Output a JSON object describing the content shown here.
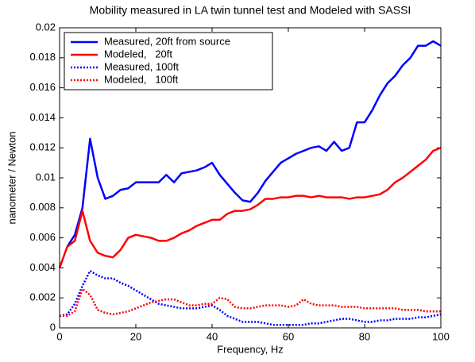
{
  "chart_data": {
    "type": "line",
    "title": "Mobility measured in LA twin tunnel test and Modeled with SASSI",
    "xlabel": "Frequency, Hz",
    "ylabel": "nanometer / Newton",
    "xlim": [
      0,
      100
    ],
    "xticks": [
      0,
      20,
      40,
      60,
      80,
      100
    ],
    "ylim": [
      0,
      0.02
    ],
    "yticks": [
      0,
      0.002,
      0.004,
      0.006,
      0.008,
      0.01,
      0.012,
      0.014,
      0.016,
      0.018,
      0.02
    ],
    "grid": false,
    "legend": "upper left",
    "x": [
      0,
      2,
      4,
      6,
      8,
      10,
      12,
      14,
      16,
      18,
      20,
      22,
      24,
      26,
      28,
      30,
      32,
      34,
      36,
      38,
      40,
      42,
      44,
      46,
      48,
      50,
      52,
      54,
      56,
      58,
      60,
      62,
      64,
      66,
      68,
      70,
      72,
      74,
      76,
      78,
      80,
      82,
      84,
      86,
      88,
      90,
      92,
      94,
      96,
      98,
      100
    ],
    "series": [
      {
        "name": "Measured, 20ft from source",
        "color": "#0000ff",
        "linestyle": "solid",
        "values": [
          null,
          0.0054,
          0.0062,
          0.008,
          0.0126,
          0.01,
          0.0086,
          0.0088,
          0.0092,
          0.0093,
          0.0097,
          0.0097,
          0.0097,
          0.0097,
          0.0102,
          0.0097,
          0.0103,
          0.0104,
          0.0105,
          0.0107,
          0.011,
          0.0102,
          0.0096,
          0.009,
          0.0085,
          0.0084,
          0.009,
          0.0098,
          0.0104,
          0.011,
          0.0113,
          0.0116,
          0.0118,
          0.012,
          0.0121,
          0.0118,
          0.0124,
          0.0118,
          0.012,
          0.0137,
          0.0137,
          0.0145,
          0.0155,
          0.0163,
          0.0168,
          0.0175,
          0.018,
          0.0188,
          0.0188,
          0.0191,
          0.0188
        ]
      },
      {
        "name": "Modeled,   20ft",
        "color": "#ff0000",
        "linestyle": "solid",
        "values": [
          0.004,
          0.0054,
          0.0058,
          0.0078,
          0.0058,
          0.005,
          0.0048,
          0.0047,
          0.0052,
          0.006,
          0.0062,
          0.0061,
          0.006,
          0.0058,
          0.0058,
          0.006,
          0.0063,
          0.0065,
          0.0068,
          0.007,
          0.0072,
          0.0072,
          0.0076,
          0.0078,
          0.0078,
          0.0079,
          0.0082,
          0.0086,
          0.0086,
          0.0087,
          0.0087,
          0.0088,
          0.0088,
          0.0087,
          0.0088,
          0.0087,
          0.0087,
          0.0087,
          0.0086,
          0.0087,
          0.0087,
          0.0088,
          0.0089,
          0.0092,
          0.0097,
          0.01,
          0.0104,
          0.0108,
          0.0112,
          0.0118,
          0.012
        ]
      },
      {
        "name": "Measured, 100ft",
        "color": "#0000ff",
        "linestyle": "dotted",
        "values": [
          0.0008,
          0.0009,
          0.0016,
          0.0028,
          0.0038,
          0.0035,
          0.0033,
          0.0033,
          0.003,
          0.0028,
          0.0025,
          0.0022,
          0.0019,
          0.0016,
          0.0015,
          0.0014,
          0.0013,
          0.0013,
          0.0013,
          0.0014,
          0.0015,
          0.0012,
          0.0008,
          0.0006,
          0.0004,
          0.0004,
          0.0004,
          0.0003,
          0.0002,
          0.0002,
          0.0002,
          0.0002,
          0.0002,
          0.0003,
          0.0003,
          0.0004,
          0.0005,
          0.0006,
          0.0006,
          0.0005,
          0.0004,
          0.0004,
          0.0005,
          0.0005,
          0.0006,
          0.0006,
          0.0006,
          0.0007,
          0.0007,
          0.0008,
          0.0009
        ]
      },
      {
        "name": "Modeled,   100ft",
        "color": "#ff0000",
        "linestyle": "dotted",
        "values": [
          0.0008,
          0.0008,
          0.0011,
          0.0026,
          0.0022,
          0.0012,
          0.001,
          0.0009,
          0.001,
          0.0011,
          0.0013,
          0.0015,
          0.0017,
          0.0018,
          0.0019,
          0.0019,
          0.0017,
          0.0015,
          0.0015,
          0.0016,
          0.0016,
          0.002,
          0.0019,
          0.0014,
          0.0013,
          0.0013,
          0.0014,
          0.0015,
          0.0015,
          0.0015,
          0.0014,
          0.0015,
          0.0019,
          0.0016,
          0.0015,
          0.0015,
          0.0015,
          0.0014,
          0.0014,
          0.0014,
          0.0013,
          0.0013,
          0.0013,
          0.0013,
          0.0013,
          0.0012,
          0.0012,
          0.0012,
          0.0011,
          0.0011,
          0.0011
        ]
      }
    ]
  }
}
